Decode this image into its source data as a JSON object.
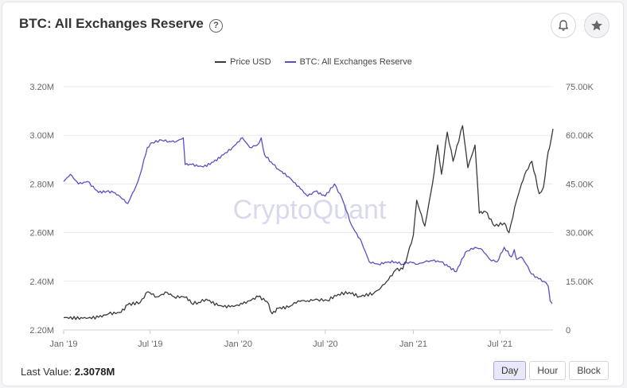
{
  "header": {
    "title": "BTC: All Exchanges Reserve",
    "help_icon": "question-circle-icon",
    "bell_icon": "bell-icon",
    "star_icon": "star-icon"
  },
  "watermark": "CryptoQuant",
  "footer": {
    "last_value_label": "Last Value:",
    "last_value": "2.3078M"
  },
  "interval_buttons": [
    "Day",
    "Hour",
    "Block"
  ],
  "active_interval": "Day",
  "colors": {
    "price": "#3a3a3a",
    "reserve": "#5b4fc4",
    "grid": "#e9e9ee",
    "axis_text": "#666666"
  },
  "chart_data": {
    "type": "line",
    "legend": [
      "Price USD",
      "BTC: All Exchanges Reserve"
    ],
    "legend_position": "top-center",
    "grid": true,
    "x_ticks": [
      "Jan '19",
      "Jul '19",
      "Jan '20",
      "Jul '20",
      "Jan '21",
      "Jul '21"
    ],
    "xlim": [
      "2019-01-01",
      "2021-10-20"
    ],
    "y_left": {
      "ticks": [
        "2.20M",
        "2.40M",
        "2.60M",
        "2.80M",
        "3.00M",
        "3.20M"
      ],
      "ylim": [
        2200000,
        3200000
      ],
      "series": "BTC: All Exchanges Reserve"
    },
    "y_right": {
      "ticks": [
        "0",
        "15.00K",
        "30.00K",
        "45.00K",
        "60.00K",
        "75.00K"
      ],
      "ylim": [
        0,
        75000
      ],
      "series": "Price USD"
    },
    "series": [
      {
        "name": "BTC: All Exchanges Reserve",
        "axis": "left",
        "x": [
          "2019-01-01",
          "2019-01-15",
          "2019-02-01",
          "2019-02-20",
          "2019-03-15",
          "2019-04-01",
          "2019-04-15",
          "2019-04-25",
          "2019-05-15",
          "2019-06-01",
          "2019-06-10",
          "2019-06-25",
          "2019-07-05",
          "2019-07-25",
          "2019-08-10",
          "2019-08-25",
          "2019-09-08",
          "2019-09-12",
          "2019-09-25",
          "2019-10-20",
          "2019-11-10",
          "2019-12-01",
          "2019-12-20",
          "2020-01-10",
          "2020-01-25",
          "2020-02-10",
          "2020-02-18",
          "2020-02-25",
          "2020-03-10",
          "2020-03-25",
          "2020-04-15",
          "2020-05-10",
          "2020-05-25",
          "2020-06-10",
          "2020-07-01",
          "2020-07-20",
          "2020-08-05",
          "2020-08-25",
          "2020-09-15",
          "2020-10-01",
          "2020-10-20",
          "2020-11-10",
          "2020-11-25",
          "2020-12-10",
          "2020-12-25",
          "2021-01-10",
          "2021-01-25",
          "2021-02-10",
          "2021-02-28",
          "2021-03-15",
          "2021-04-01",
          "2021-04-20",
          "2021-05-10",
          "2021-05-25",
          "2021-06-10",
          "2021-06-25",
          "2021-07-10",
          "2021-07-25",
          "2021-07-31",
          "2021-08-05",
          "2021-08-15",
          "2021-08-25",
          "2021-09-05",
          "2021-09-20",
          "2021-10-01",
          "2021-10-10",
          "2021-10-14",
          "2021-10-18"
        ],
        "values": [
          2810000,
          2840000,
          2800000,
          2810000,
          2765000,
          2770000,
          2765000,
          2755000,
          2720000,
          2790000,
          2840000,
          2950000,
          2970000,
          2980000,
          2975000,
          2975000,
          2990000,
          2880000,
          2880000,
          2870000,
          2890000,
          2920000,
          2950000,
          2990000,
          2950000,
          2960000,
          2990000,
          2920000,
          2890000,
          2860000,
          2830000,
          2780000,
          2750000,
          2770000,
          2750000,
          2800000,
          2740000,
          2630000,
          2560000,
          2480000,
          2470000,
          2480000,
          2480000,
          2470000,
          2480000,
          2470000,
          2480000,
          2485000,
          2480000,
          2460000,
          2440000,
          2520000,
          2540000,
          2530000,
          2490000,
          2480000,
          2540000,
          2500000,
          2530000,
          2490000,
          2500000,
          2470000,
          2430000,
          2410000,
          2400000,
          2380000,
          2320000,
          2308000
        ]
      },
      {
        "name": "Price USD",
        "axis": "right",
        "x": [
          "2019-01-01",
          "2019-02-10",
          "2019-03-15",
          "2019-04-05",
          "2019-05-01",
          "2019-05-15",
          "2019-06-10",
          "2019-06-26",
          "2019-07-15",
          "2019-08-05",
          "2019-08-20",
          "2019-09-15",
          "2019-09-25",
          "2019-10-10",
          "2019-10-26",
          "2019-11-20",
          "2019-12-15",
          "2020-01-10",
          "2020-02-12",
          "2020-03-01",
          "2020-03-12",
          "2020-03-25",
          "2020-04-15",
          "2020-05-05",
          "2020-05-25",
          "2020-06-15",
          "2020-07-05",
          "2020-07-28",
          "2020-08-20",
          "2020-09-10",
          "2020-10-10",
          "2020-10-25",
          "2020-11-10",
          "2020-11-25",
          "2020-12-10",
          "2020-12-20",
          "2021-01-01",
          "2021-01-08",
          "2021-01-25",
          "2021-02-10",
          "2021-02-21",
          "2021-03-01",
          "2021-03-13",
          "2021-03-25",
          "2021-04-14",
          "2021-04-25",
          "2021-05-10",
          "2021-05-19",
          "2021-06-01",
          "2021-06-20",
          "2021-07-10",
          "2021-07-20",
          "2021-08-05",
          "2021-08-15",
          "2021-08-25",
          "2021-09-06",
          "2021-09-21",
          "2021-09-30",
          "2021-10-10",
          "2021-10-14",
          "2021-10-20"
        ],
        "values": [
          3800,
          3600,
          3900,
          5000,
          5400,
          7800,
          8500,
          11800,
          10200,
          11600,
          10200,
          10200,
          8200,
          8500,
          9500,
          7500,
          7100,
          8000,
          10300,
          8800,
          5000,
          6700,
          7000,
          9000,
          9000,
          9400,
          9100,
          11000,
          11600,
          10300,
          11300,
          13000,
          15500,
          18500,
          18800,
          23000,
          29300,
          40000,
          32000,
          45000,
          57000,
          48000,
          61000,
          52000,
          63000,
          50000,
          57000,
          36000,
          36500,
          32000,
          33000,
          30000,
          40000,
          45000,
          49000,
          52000,
          42000,
          44000,
          55000,
          57000,
          62000
        ]
      }
    ]
  }
}
